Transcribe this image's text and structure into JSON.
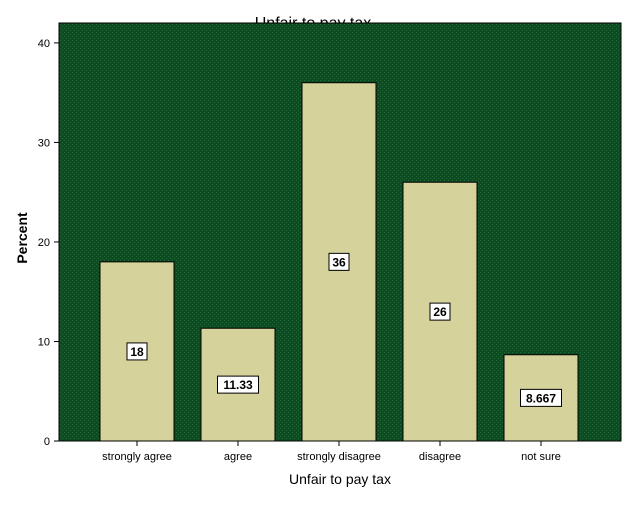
{
  "chart_data": {
    "type": "bar",
    "title": "Unfair to pay tax",
    "xlabel": "Unfair to pay tax",
    "ylabel": "Percent",
    "categories": [
      "strongly agree",
      "agree",
      "strongly disagree",
      "disagree",
      "not sure"
    ],
    "values": [
      18,
      11.33,
      36,
      26,
      8.667
    ],
    "value_labels": [
      "18",
      "11.33",
      "36",
      "26",
      "8.667"
    ],
    "ylim": [
      0,
      42
    ],
    "yticks": [
      0,
      10,
      20,
      30,
      40
    ],
    "grid": false,
    "legend": "none",
    "colors": {
      "plot_background": "#0e4a22",
      "bar_fill": "#d6d29c",
      "bar_stroke": "#000000",
      "label_box_fill": "#ffffff",
      "text": "#000000"
    }
  }
}
